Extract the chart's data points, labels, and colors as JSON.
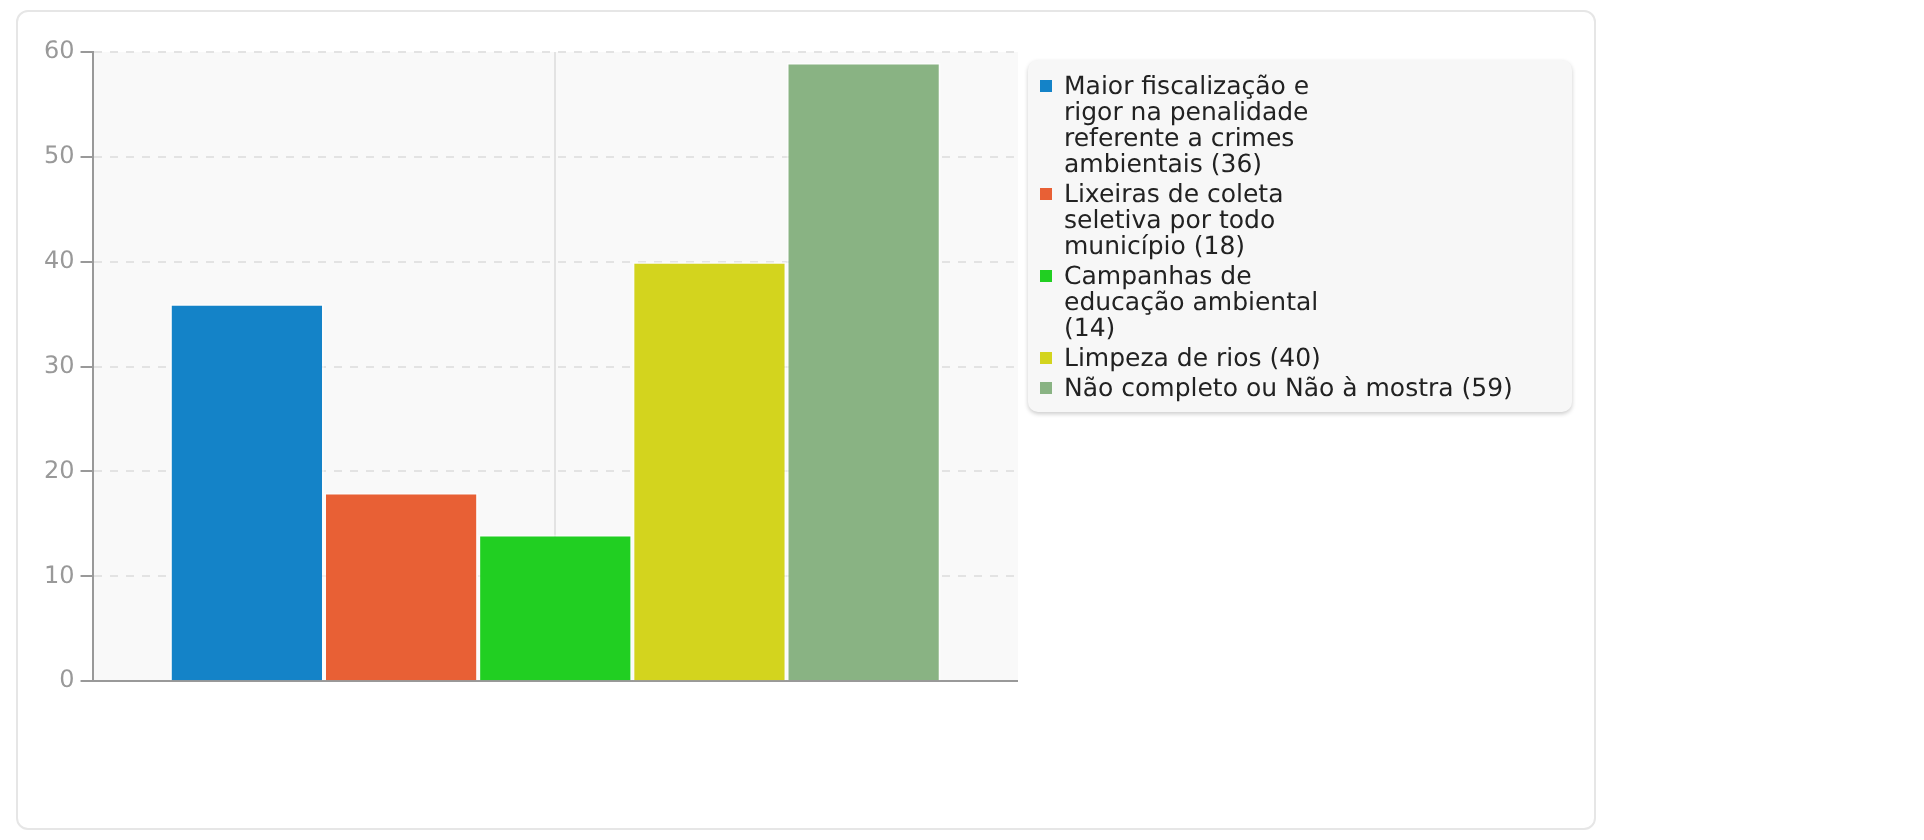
{
  "chart_data": {
    "type": "bar",
    "categories": [
      null
    ],
    "series": [
      {
        "name": "Maior fiscalização e rigor na penalidade referente a crimes ambientais (36)",
        "color": "#1483c8",
        "values": [
          36
        ]
      },
      {
        "name": "Lixeiras de coleta seletiva por todo município (18)",
        "color": "#e86035",
        "values": [
          18
        ]
      },
      {
        "name": "Campanhas de educação ambiental (14)",
        "color": "#21cf22",
        "values": [
          14
        ]
      },
      {
        "name": "Limpeza de rios (40)",
        "color": "#d3d41e",
        "values": [
          40
        ]
      },
      {
        "name": "Não completo ou Não à mostra (59)",
        "color": "#89b383",
        "values": [
          59
        ]
      }
    ],
    "ylim": [
      0,
      60
    ],
    "yticks": [
      0,
      10,
      20,
      30,
      40,
      50,
      60
    ],
    "grid": true,
    "legend": "right"
  }
}
